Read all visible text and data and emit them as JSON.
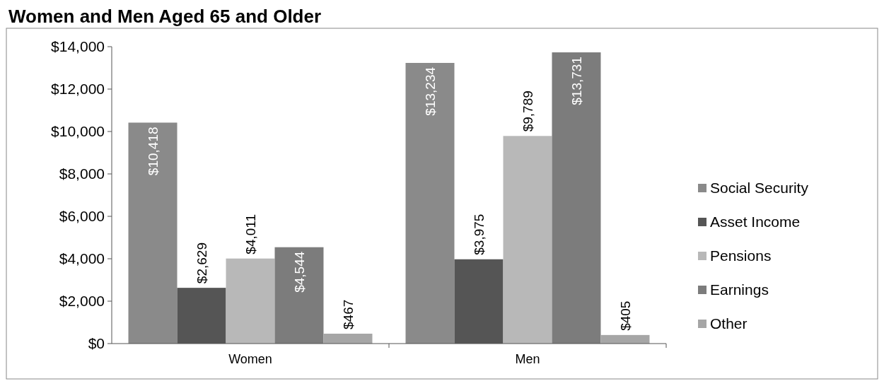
{
  "chart_data": {
    "type": "bar",
    "title": "Women and Men Aged 65 and Older",
    "categories": [
      "Women",
      "Men"
    ],
    "series": [
      {
        "name": "Social Security",
        "color": "#8a8a8a",
        "values": [
          10418,
          13234
        ],
        "value_labels": [
          "$10,418",
          "$13,234"
        ]
      },
      {
        "name": "Asset Income",
        "color": "#555555",
        "values": [
          2629,
          3975
        ],
        "value_labels": [
          "$2,629",
          "$3,975"
        ]
      },
      {
        "name": "Pensions",
        "color": "#b8b8b8",
        "values": [
          4011,
          9789
        ],
        "value_labels": [
          "$4,011",
          "$9,789"
        ]
      },
      {
        "name": "Earnings",
        "color": "#7c7c7c",
        "values": [
          4544,
          13731
        ],
        "value_labels": [
          "$4,544",
          "$13,731"
        ]
      },
      {
        "name": "Other",
        "color": "#a6a6a6",
        "values": [
          467,
          405
        ],
        "value_labels": [
          "$467",
          "$405"
        ]
      }
    ],
    "ylim": [
      0,
      14000
    ],
    "yticks": [
      {
        "value": 0,
        "label": "$0"
      },
      {
        "value": 2000,
        "label": "$2,000"
      },
      {
        "value": 4000,
        "label": "$4,000"
      },
      {
        "value": 6000,
        "label": "$6,000"
      },
      {
        "value": 8000,
        "label": "$8,000"
      },
      {
        "value": 10000,
        "label": "$10,000"
      },
      {
        "value": 12000,
        "label": "$12,000"
      },
      {
        "value": 14000,
        "label": "$14,000"
      }
    ],
    "grid": false,
    "legend": "right"
  }
}
